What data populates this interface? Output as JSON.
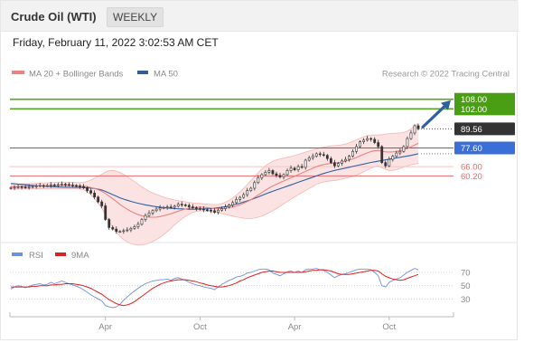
{
  "header": {
    "title": "Crude Oil (WTI)",
    "period": "WEEKLY",
    "timestamp": "Friday, February 11, 2022 3:02:53 AM CET"
  },
  "credit": "Research © 2022 Tracing Central",
  "legend": {
    "bollinger": "MA 20 + Bollinger Bands",
    "ma50": "MA 50",
    "rsi": "RSI",
    "rsi_ma": "9MA"
  },
  "colors": {
    "candle": "#333333",
    "bollinger": "#f08080",
    "band_fill": "#fce3e3",
    "ma50": "#2f5f9f",
    "target_line": "#5aa51e",
    "target_box": "#4a9e13",
    "last_price_box": "#333333",
    "level_blue": "#3a6fd8",
    "level_red": "#e36a6a",
    "rsi_line": "#6f8fe0",
    "rsi_ma_line": "#e02020",
    "arrow": "#2f5f9f"
  },
  "chart_data": [
    {
      "type": "candlestick",
      "name": "price",
      "x_ticks": [
        "Apr",
        "Oct",
        "Apr",
        "Oct"
      ],
      "ylim": [
        22,
        118
      ],
      "levels": [
        {
          "label": "108.00",
          "value": 108.0,
          "style": "green-box"
        },
        {
          "label": "102.00",
          "value": 102.0,
          "style": "green-box"
        },
        {
          "label": "89.56",
          "value": 89.56,
          "style": "last-price"
        },
        {
          "label": "77.60",
          "value": 77.6,
          "style": "blue-box"
        },
        {
          "label": "66.00",
          "value": 66.0,
          "style": "red-text"
        },
        {
          "label": "60.20",
          "value": 60.2,
          "style": "red-text"
        }
      ],
      "close": [
        52.8,
        53.1,
        53.4,
        53.2,
        53.0,
        53.3,
        53.6,
        53.9,
        54.2,
        53.9,
        54.1,
        54.6,
        54.3,
        54.7,
        55.0,
        54.8,
        54.5,
        54.2,
        53.8,
        53.5,
        52.8,
        51.0,
        49.5,
        47.0,
        44.0,
        41.5,
        33.0,
        28.0,
        27.0,
        25.5,
        25.5,
        26.0,
        26.5,
        27.5,
        28.5,
        30.0,
        33.0,
        35.5,
        37.0,
        38.5,
        39.5,
        40.3,
        40.5,
        40.8,
        40.6,
        41.3,
        42.5,
        42.1,
        41.8,
        40.9,
        40.3,
        39.8,
        39.5,
        39.0,
        38.8,
        38.5,
        37.5,
        38.8,
        39.8,
        40.8,
        42.0,
        43.5,
        45.5,
        46.8,
        48.5,
        51.0,
        52.5,
        56.0,
        59.0,
        61.0,
        62.5,
        63.5,
        61.5,
        60.5,
        59.5,
        61.0,
        63.5,
        65.0,
        64.0,
        66.0,
        65.5,
        70.0,
        71.5,
        72.5,
        74.0,
        73.5,
        73.0,
        71.0,
        68.5,
        66.5,
        68.0,
        69.5,
        70.5,
        72.5,
        75.5,
        78.5,
        81.5,
        82.5,
        83.5,
        83.0,
        81.0,
        78.5,
        68.5,
        66.5,
        70.5,
        72.5,
        74.5,
        75.5,
        78.5,
        83.5,
        87.0,
        91.5,
        89.56
      ],
      "ma50": [
        55.5,
        55.3,
        55.1,
        54.9,
        54.7,
        54.5,
        54.3,
        54.1,
        53.9,
        53.8,
        53.6,
        53.5,
        53.4,
        53.3,
        53.2,
        53.2,
        53.1,
        53.1,
        53.0,
        53.0,
        52.9,
        52.8,
        52.6,
        52.3,
        51.9,
        51.4,
        50.5,
        49.5,
        48.5,
        47.5,
        46.5,
        45.7,
        45.0,
        44.3,
        43.7,
        43.1,
        42.6,
        42.1,
        41.7,
        41.3,
        41.0,
        40.7,
        40.4,
        40.2,
        40.0,
        39.8,
        39.7,
        39.6,
        39.5,
        39.4,
        39.4,
        39.4,
        39.5,
        39.6,
        39.7,
        39.8,
        40.0,
        40.3,
        40.6,
        41.0,
        41.5,
        42.0,
        42.6,
        43.2,
        43.9,
        44.6,
        45.4,
        46.2,
        47.1,
        48.0,
        48.9,
        49.8,
        50.6,
        51.4,
        52.2,
        53.0,
        53.8,
        54.6,
        55.4,
        56.2,
        57.0,
        57.8,
        58.6,
        59.4,
        60.2,
        61.0,
        61.7,
        62.4,
        63.0,
        63.6,
        64.1,
        64.6,
        65.1,
        65.6,
        66.1,
        66.6,
        67.1,
        67.6,
        68.1,
        68.6,
        69.0,
        69.4,
        69.8,
        70.2,
        70.6,
        71.0,
        71.4,
        71.8,
        72.2,
        72.6,
        73.0,
        73.5,
        74.0
      ],
      "ma20": [
        53.4,
        53.5,
        53.6,
        53.6,
        53.7,
        53.8,
        53.8,
        53.9,
        54.0,
        54.0,
        54.0,
        54.1,
        54.2,
        54.2,
        54.3,
        54.3,
        54.3,
        54.2,
        54.1,
        54.0,
        53.8,
        53.5,
        53.0,
        52.4,
        51.6,
        50.6,
        49.2,
        47.6,
        45.9,
        44.2,
        42.4,
        40.8,
        39.4,
        38.1,
        37.0,
        36.0,
        35.3,
        34.8,
        34.5,
        34.4,
        34.5,
        34.8,
        35.3,
        35.9,
        36.6,
        37.4,
        38.2,
        38.9,
        39.5,
        40.0,
        40.4,
        40.6,
        40.7,
        40.6,
        40.4,
        40.1,
        39.9,
        39.8,
        39.8,
        40.0,
        40.3,
        40.8,
        41.4,
        42.2,
        43.1,
        44.2,
        45.4,
        46.8,
        48.3,
        49.8,
        51.3,
        52.7,
        53.9,
        55.0,
        56.0,
        57.0,
        58.0,
        59.0,
        60.0,
        61.0,
        62.0,
        63.0,
        64.0,
        65.0,
        66.0,
        66.7,
        67.3,
        67.7,
        68.0,
        68.2,
        68.5,
        68.9,
        69.4,
        70.0,
        70.8,
        71.7,
        72.7,
        73.7,
        74.6,
        75.4,
        75.9,
        76.1,
        75.6,
        75.2,
        75.1,
        75.2,
        75.5,
        75.9,
        76.5,
        77.3,
        78.3,
        79.5,
        80.5
      ],
      "bb_upper": [
        54.8,
        55.0,
        55.1,
        55.2,
        55.3,
        55.4,
        55.5,
        55.6,
        55.7,
        55.8,
        55.9,
        56.0,
        56.1,
        56.2,
        56.3,
        56.3,
        56.3,
        56.2,
        56.1,
        56.0,
        56.2,
        56.8,
        57.6,
        58.8,
        60.0,
        61.2,
        62.6,
        63.4,
        63.6,
        63.2,
        62.4,
        61.2,
        59.8,
        58.2,
        56.6,
        55.0,
        53.4,
        52.0,
        50.7,
        49.6,
        48.6,
        47.8,
        47.0,
        46.3,
        45.7,
        45.2,
        44.8,
        44.4,
        44.0,
        43.7,
        43.4,
        43.2,
        43.0,
        42.8,
        42.6,
        42.4,
        42.3,
        42.4,
        42.9,
        43.8,
        45.0,
        46.5,
        48.2,
        50.2,
        52.4,
        54.8,
        57.2,
        59.7,
        62.2,
        64.5,
        66.5,
        68.1,
        69.3,
        70.2,
        70.8,
        71.3,
        71.8,
        72.3,
        72.9,
        73.6,
        74.3,
        75.0,
        75.7,
        76.4,
        77.1,
        77.7,
        78.2,
        78.6,
        78.9,
        79.1,
        79.3,
        79.6,
        80.1,
        80.8,
        81.7,
        82.7,
        83.7,
        84.6,
        85.3,
        85.7,
        85.8,
        85.7,
        85.9,
        86.3,
        86.6,
        86.8,
        86.9,
        87.0,
        87.3,
        88.1,
        89.5,
        91.4,
        93.0
      ],
      "bb_lower": [
        52.0,
        52.0,
        52.1,
        52.0,
        52.1,
        52.2,
        52.1,
        52.2,
        52.3,
        52.2,
        52.1,
        52.2,
        52.3,
        52.2,
        52.3,
        52.3,
        52.3,
        52.2,
        52.1,
        52.0,
        51.4,
        50.2,
        48.4,
        46.0,
        43.2,
        40.0,
        35.8,
        31.8,
        28.2,
        25.2,
        22.4,
        20.4,
        19.0,
        18.0,
        17.4,
        17.0,
        17.2,
        17.6,
        18.3,
        19.2,
        20.4,
        21.8,
        23.6,
        25.5,
        27.5,
        29.6,
        31.6,
        33.4,
        35.0,
        36.3,
        37.4,
        38.0,
        38.4,
        38.4,
        38.2,
        37.8,
        37.5,
        37.2,
        36.7,
        36.2,
        35.6,
        35.1,
        34.6,
        34.2,
        33.8,
        33.6,
        33.6,
        33.9,
        34.4,
        35.1,
        36.1,
        37.3,
        38.5,
        39.8,
        41.2,
        42.7,
        44.2,
        45.7,
        47.1,
        48.4,
        49.7,
        51.0,
        52.3,
        53.6,
        54.9,
        55.7,
        56.4,
        56.8,
        57.1,
        57.3,
        57.7,
        58.2,
        58.7,
        59.2,
        59.9,
        60.7,
        61.7,
        62.8,
        63.9,
        65.1,
        66.0,
        66.5,
        65.3,
        64.1,
        63.6,
        63.6,
        64.1,
        64.8,
        65.7,
        66.5,
        67.1,
        67.6,
        68.0
      ]
    },
    {
      "type": "line",
      "name": "RSI",
      "ticks": [
        70,
        50,
        30
      ],
      "ylim": [
        10,
        85
      ],
      "rsi": [
        45,
        48,
        50,
        49,
        47,
        49,
        51,
        52,
        53,
        51,
        52,
        55,
        53,
        55,
        57,
        55,
        53,
        51,
        49,
        47,
        44,
        40,
        36,
        33,
        30,
        27,
        20,
        18,
        17,
        18,
        22,
        28,
        33,
        38,
        42,
        46,
        50,
        53,
        55,
        57,
        58,
        59,
        59,
        60,
        58,
        61,
        62,
        60,
        58,
        55,
        53,
        51,
        50,
        48,
        47,
        46,
        44,
        48,
        52,
        55,
        58,
        60,
        63,
        64,
        66,
        69,
        70,
        72,
        74,
        75,
        75,
        74,
        69,
        67,
        65,
        68,
        71,
        72,
        70,
        72,
        70,
        74,
        75,
        75,
        76,
        74,
        73,
        70,
        66,
        62,
        65,
        67,
        68,
        70,
        72,
        74,
        75,
        75,
        75,
        74,
        70,
        65,
        50,
        48,
        55,
        58,
        60,
        62,
        66,
        70,
        73,
        76,
        74
      ],
      "rsi_ma": [
        48,
        48,
        48,
        48,
        48,
        48,
        49,
        49,
        50,
        50,
        50,
        51,
        51,
        52,
        52,
        53,
        53,
        53,
        52,
        51,
        50,
        48,
        46,
        43,
        40,
        37,
        33,
        29,
        26,
        23,
        21,
        20,
        21,
        23,
        26,
        30,
        34,
        38,
        42,
        46,
        49,
        52,
        54,
        56,
        57,
        58,
        59,
        59,
        59,
        58,
        57,
        56,
        54,
        53,
        51,
        50,
        49,
        48,
        48,
        49,
        50,
        52,
        54,
        57,
        59,
        62,
        64,
        66,
        68,
        70,
        71,
        72,
        72,
        71,
        70,
        70,
        70,
        70,
        70,
        70,
        70,
        71,
        72,
        73,
        73,
        74,
        74,
        73,
        72,
        70,
        68,
        67,
        67,
        67,
        68,
        69,
        70,
        71,
        72,
        73,
        73,
        72,
        68,
        64,
        62,
        60,
        59,
        58,
        59,
        61,
        63,
        65,
        67
      ]
    }
  ]
}
